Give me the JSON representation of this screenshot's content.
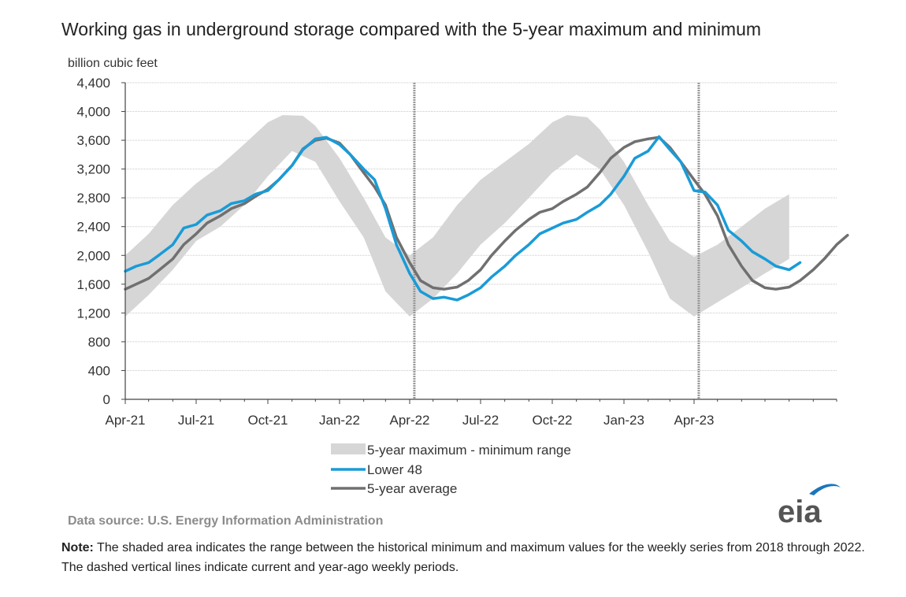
{
  "title": "Working gas in underground  storage compared with the 5-year maximum and minimum",
  "source": "Data source:  U.S. Energy Information Administration",
  "note_label": "Note:",
  "note_text": " The shaded area indicates the range between the historical minimum and maximum values for the weekly series from 2018 through 2022. The dashed vertical lines indicate current and year-ago weekly periods.",
  "logo_text": "eia",
  "colors": {
    "lower48": "#1a9bd7",
    "average": "#707070",
    "range": "#d6d6d6",
    "grid": "#c8c8c8",
    "eia_blue": "#1b75bb"
  },
  "chart_data": {
    "type": "area",
    "title": "Working gas in underground  storage compared with the 5-year maximum and minimum",
    "ylabel": "billion cubic feet",
    "ylim": [
      0,
      4400
    ],
    "yticks": [
      0,
      400,
      800,
      1200,
      1600,
      2000,
      2400,
      2800,
      3200,
      3600,
      4000,
      4400
    ],
    "ytick_labels": [
      "0",
      "400",
      "800",
      "1,200",
      "1,600",
      "2,000",
      "2,400",
      "2,800",
      "3,200",
      "3,600",
      "4,000",
      "4,400"
    ],
    "x_start": "2021-04-01",
    "x_end": "2023-10-01",
    "xticks": [
      "2021-04-01",
      "2021-07-01",
      "2021-10-01",
      "2022-01-01",
      "2022-04-01",
      "2022-07-01",
      "2022-10-01",
      "2023-01-01",
      "2023-04-01"
    ],
    "xtick_labels": [
      "Apr-21",
      "Jul-21",
      "Oct-21",
      "Jan-22",
      "Apr-22",
      "Jul-22",
      "Oct-22",
      "Jan-23",
      "Apr-23"
    ],
    "vlines": [
      "2022-04-07",
      "2023-04-07"
    ],
    "grid": true,
    "legend_position": "bottom",
    "legend": [
      "5-year maximum - minimum range",
      "Lower 48",
      "5-year average"
    ],
    "range_max": [
      [
        "2021-04-01",
        2000
      ],
      [
        "2021-05-01",
        2300
      ],
      [
        "2021-06-01",
        2700
      ],
      [
        "2021-07-01",
        3000
      ],
      [
        "2021-08-01",
        3250
      ],
      [
        "2021-09-01",
        3550
      ],
      [
        "2021-10-01",
        3850
      ],
      [
        "2021-10-20",
        3950
      ],
      [
        "2021-11-15",
        3940
      ],
      [
        "2021-12-01",
        3800
      ],
      [
        "2022-01-01",
        3350
      ],
      [
        "2022-02-01",
        2800
      ],
      [
        "2022-03-01",
        2250
      ],
      [
        "2022-04-01",
        2000
      ],
      [
        "2022-05-01",
        2250
      ],
      [
        "2022-06-01",
        2700
      ],
      [
        "2022-07-01",
        3050
      ],
      [
        "2022-08-01",
        3300
      ],
      [
        "2022-09-01",
        3550
      ],
      [
        "2022-10-01",
        3850
      ],
      [
        "2022-10-20",
        3950
      ],
      [
        "2022-11-15",
        3920
      ],
      [
        "2022-12-01",
        3750
      ],
      [
        "2023-01-01",
        3300
      ],
      [
        "2023-02-01",
        2700
      ],
      [
        "2023-03-01",
        2200
      ],
      [
        "2023-04-01",
        1980
      ],
      [
        "2023-05-01",
        2150
      ],
      [
        "2023-06-01",
        2400
      ],
      [
        "2023-07-01",
        2650
      ],
      [
        "2023-08-01",
        2850
      ]
    ],
    "range_min": [
      [
        "2021-04-01",
        1150
      ],
      [
        "2021-05-01",
        1450
      ],
      [
        "2021-06-01",
        1800
      ],
      [
        "2021-07-01",
        2200
      ],
      [
        "2021-08-01",
        2400
      ],
      [
        "2021-09-01",
        2700
      ],
      [
        "2021-10-01",
        3100
      ],
      [
        "2021-11-01",
        3450
      ],
      [
        "2021-12-01",
        3300
      ],
      [
        "2022-01-01",
        2750
      ],
      [
        "2022-02-01",
        2250
      ],
      [
        "2022-03-01",
        1500
      ],
      [
        "2022-04-01",
        1150
      ],
      [
        "2022-05-01",
        1400
      ],
      [
        "2022-06-01",
        1750
      ],
      [
        "2022-07-01",
        2150
      ],
      [
        "2022-08-01",
        2450
      ],
      [
        "2022-09-01",
        2800
      ],
      [
        "2022-10-01",
        3150
      ],
      [
        "2022-11-01",
        3400
      ],
      [
        "2022-12-01",
        3200
      ],
      [
        "2023-01-01",
        2700
      ],
      [
        "2023-02-01",
        2050
      ],
      [
        "2023-03-01",
        1400
      ],
      [
        "2023-04-01",
        1150
      ],
      [
        "2023-05-01",
        1350
      ],
      [
        "2023-06-01",
        1550
      ],
      [
        "2023-07-01",
        1750
      ],
      [
        "2023-08-01",
        1950
      ]
    ],
    "series": [
      {
        "name": "Lower 48",
        "color": "#1a9bd7",
        "points": [
          [
            "2021-04-01",
            1780
          ],
          [
            "2021-04-15",
            1850
          ],
          [
            "2021-05-01",
            1900
          ],
          [
            "2021-05-15",
            2010
          ],
          [
            "2021-06-01",
            2150
          ],
          [
            "2021-06-15",
            2380
          ],
          [
            "2021-07-01",
            2430
          ],
          [
            "2021-07-15",
            2560
          ],
          [
            "2021-08-01",
            2620
          ],
          [
            "2021-08-15",
            2720
          ],
          [
            "2021-09-01",
            2760
          ],
          [
            "2021-09-15",
            2850
          ],
          [
            "2021-10-01",
            2900
          ],
          [
            "2021-10-15",
            3050
          ],
          [
            "2021-11-01",
            3250
          ],
          [
            "2021-11-15",
            3470
          ],
          [
            "2021-12-01",
            3620
          ],
          [
            "2021-12-15",
            3640
          ],
          [
            "2022-01-01",
            3540
          ],
          [
            "2022-01-15",
            3400
          ],
          [
            "2022-02-01",
            3200
          ],
          [
            "2022-02-15",
            3050
          ],
          [
            "2022-03-01",
            2650
          ],
          [
            "2022-03-15",
            2150
          ],
          [
            "2022-04-01",
            1750
          ],
          [
            "2022-04-15",
            1500
          ],
          [
            "2022-05-01",
            1400
          ],
          [
            "2022-05-15",
            1420
          ],
          [
            "2022-06-01",
            1380
          ],
          [
            "2022-06-15",
            1450
          ],
          [
            "2022-07-01",
            1550
          ],
          [
            "2022-07-15",
            1700
          ],
          [
            "2022-08-01",
            1850
          ],
          [
            "2022-08-15",
            2000
          ],
          [
            "2022-09-01",
            2150
          ],
          [
            "2022-09-15",
            2300
          ],
          [
            "2022-10-01",
            2380
          ],
          [
            "2022-10-15",
            2450
          ],
          [
            "2022-11-01",
            2500
          ],
          [
            "2022-11-15",
            2600
          ],
          [
            "2022-12-01",
            2700
          ],
          [
            "2022-12-15",
            2850
          ],
          [
            "2023-01-01",
            3100
          ],
          [
            "2023-01-15",
            3350
          ],
          [
            "2023-02-01",
            3450
          ],
          [
            "2023-02-15",
            3650
          ],
          [
            "2023-03-01",
            3470
          ],
          [
            "2023-03-15",
            3300
          ],
          [
            "2023-04-01",
            2900
          ],
          [
            "2023-04-15",
            2880
          ],
          [
            "2023-05-01",
            2700
          ],
          [
            "2023-05-15",
            2350
          ],
          [
            "2023-06-01",
            2200
          ],
          [
            "2023-06-15",
            2050
          ],
          [
            "2023-07-01",
            1950
          ],
          [
            "2023-07-15",
            1850
          ],
          [
            "2023-08-01",
            1800
          ],
          [
            "2023-08-15",
            1900
          ]
        ]
      },
      {
        "name": "5-year average",
        "color": "#707070",
        "points": [
          [
            "2021-04-01",
            1530
          ],
          [
            "2021-04-15",
            1600
          ],
          [
            "2021-05-01",
            1680
          ],
          [
            "2021-05-15",
            1800
          ],
          [
            "2021-06-01",
            1950
          ],
          [
            "2021-06-15",
            2150
          ],
          [
            "2021-07-01",
            2300
          ],
          [
            "2021-07-15",
            2450
          ],
          [
            "2021-08-01",
            2550
          ],
          [
            "2021-08-15",
            2650
          ],
          [
            "2021-09-01",
            2720
          ],
          [
            "2021-09-15",
            2820
          ],
          [
            "2021-10-01",
            2920
          ],
          [
            "2021-10-15",
            3050
          ],
          [
            "2021-11-01",
            3250
          ],
          [
            "2021-11-15",
            3480
          ],
          [
            "2021-12-01",
            3600
          ],
          [
            "2021-12-15",
            3630
          ],
          [
            "2022-01-01",
            3560
          ],
          [
            "2022-01-15",
            3400
          ],
          [
            "2022-02-01",
            3150
          ],
          [
            "2022-02-15",
            2950
          ],
          [
            "2022-03-01",
            2700
          ],
          [
            "2022-03-15",
            2250
          ],
          [
            "2022-04-01",
            1900
          ],
          [
            "2022-04-15",
            1650
          ],
          [
            "2022-05-01",
            1550
          ],
          [
            "2022-05-15",
            1530
          ],
          [
            "2022-06-01",
            1560
          ],
          [
            "2022-06-15",
            1650
          ],
          [
            "2022-07-01",
            1800
          ],
          [
            "2022-07-15",
            2000
          ],
          [
            "2022-08-01",
            2200
          ],
          [
            "2022-08-15",
            2350
          ],
          [
            "2022-09-01",
            2500
          ],
          [
            "2022-09-15",
            2600
          ],
          [
            "2022-10-01",
            2650
          ],
          [
            "2022-10-15",
            2750
          ],
          [
            "2022-11-01",
            2850
          ],
          [
            "2022-11-15",
            2950
          ],
          [
            "2022-12-01",
            3150
          ],
          [
            "2022-12-15",
            3350
          ],
          [
            "2023-01-01",
            3500
          ],
          [
            "2023-01-15",
            3580
          ],
          [
            "2023-02-01",
            3620
          ],
          [
            "2023-02-15",
            3640
          ],
          [
            "2023-03-01",
            3500
          ],
          [
            "2023-03-15",
            3300
          ],
          [
            "2023-04-01",
            3050
          ],
          [
            "2023-04-15",
            2850
          ],
          [
            "2023-05-01",
            2550
          ],
          [
            "2023-05-15",
            2150
          ],
          [
            "2023-06-01",
            1850
          ],
          [
            "2023-06-15",
            1650
          ],
          [
            "2023-07-01",
            1550
          ],
          [
            "2023-07-15",
            1530
          ],
          [
            "2023-08-01",
            1560
          ],
          [
            "2023-08-15",
            1650
          ],
          [
            "2023-09-01",
            1800
          ],
          [
            "2023-09-15",
            1950
          ],
          [
            "2023-10-01",
            2150
          ],
          [
            "2023-10-15",
            2280
          ]
        ]
      }
    ]
  }
}
